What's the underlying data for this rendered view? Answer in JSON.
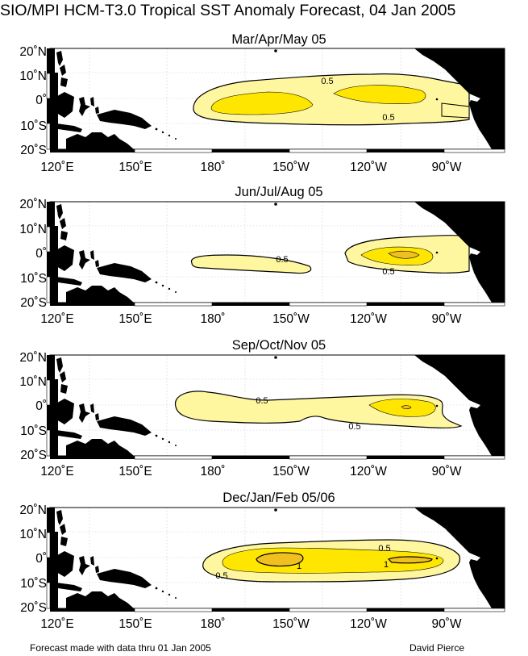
{
  "title": "SIO/MPI HCM-T3.0 Tropical SST Anomaly Forecast, 04 Jan 2005",
  "panels": [
    {
      "title": "Mar/Apr/May 05",
      "contour_labels": [
        "0.5",
        "0.5"
      ]
    },
    {
      "title": "Jun/Jul/Aug 05",
      "contour_labels": [
        "0.5",
        "0.5"
      ]
    },
    {
      "title": "Sep/Oct/Nov 05",
      "contour_labels": [
        "0.5",
        "0.5"
      ]
    },
    {
      "title": "Dec/Jan/Feb 05/06",
      "contour_labels": [
        "0.5",
        "0.5",
        "1",
        "1"
      ]
    }
  ],
  "lat_labels": [
    "20˚N",
    "10˚N",
    "0˚",
    "10˚S",
    "20˚S"
  ],
  "lon_labels": [
    "120˚E",
    "150˚E",
    "180˚",
    "150˚W",
    "120˚W",
    "90˚W"
  ],
  "footer": {
    "left": "Forecast made with data thru 01 Jan 2005",
    "right": "David Pierce"
  },
  "colors": {
    "land": "#000000",
    "anomaly_low": "#fff9b0",
    "anomaly_mid": "#ffe800",
    "anomaly_high": "#f0c020",
    "grid": "#c8c8c8"
  }
}
